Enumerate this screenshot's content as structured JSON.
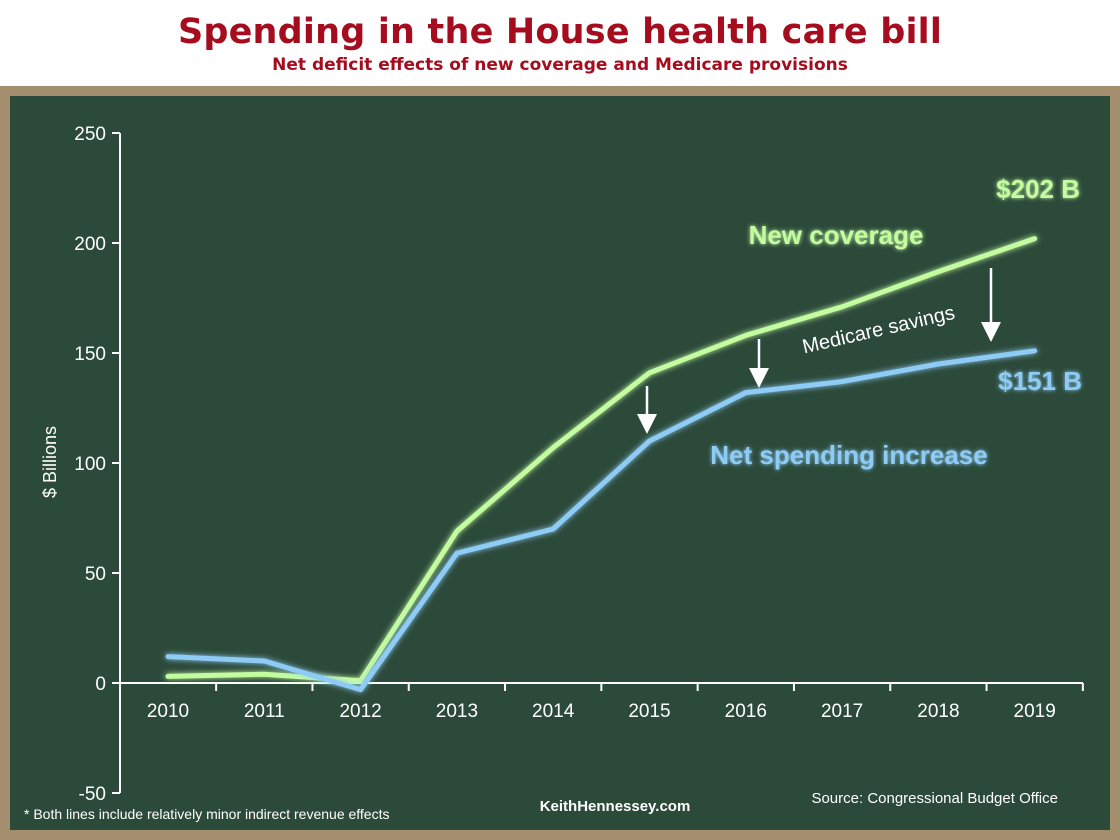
{
  "header": {
    "title": "Spending in the House health care bill",
    "subtitle": "Net deficit effects of new coverage and Medicare provisions"
  },
  "colors": {
    "board": "#2c4a3a",
    "frame": "#a38f6e",
    "title": "#a50d1f",
    "new_coverage": "#c4fca0",
    "net_spending": "#8ecbf5",
    "axis": "#ffffff"
  },
  "chart_data": {
    "type": "line",
    "title": "Spending in the House health care bill",
    "subtitle": "Net deficit effects of new coverage and Medicare provisions",
    "ylabel": "$ Billions",
    "xlabel": "",
    "ylim": [
      -50,
      250
    ],
    "yticks": [
      -50,
      0,
      50,
      100,
      150,
      200,
      250
    ],
    "categories": [
      "2010",
      "2011",
      "2012",
      "2013",
      "2014",
      "2015",
      "2016",
      "2017",
      "2018",
      "2019"
    ],
    "grid": false,
    "series": [
      {
        "name": "New coverage",
        "color": "#c4fca0",
        "values": [
          3,
          4,
          1,
          69,
          107,
          141,
          158,
          171,
          187,
          202
        ]
      },
      {
        "name": "Net spending increase",
        "color": "#8ecbf5",
        "values": [
          12,
          10,
          -3,
          59,
          70,
          110,
          132,
          137,
          145,
          151
        ]
      }
    ],
    "annotations": {
      "end_new": "$202 B",
      "end_net": "$151 B",
      "medicare": "Medicare savings"
    }
  },
  "footer": {
    "note": "* Both lines include relatively minor indirect revenue effects",
    "site": "KeithHennessey.com",
    "source": "Source: Congressional Budget Office"
  }
}
